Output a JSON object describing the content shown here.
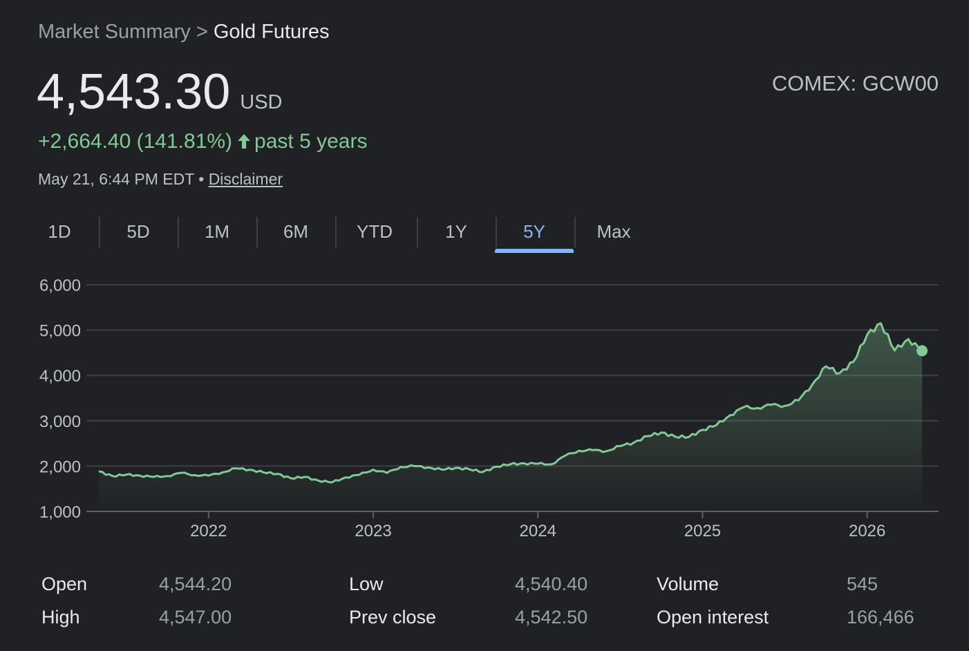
{
  "breadcrumb": {
    "parent": "Market Summary",
    "separator": ">",
    "current": "Gold Futures"
  },
  "price": {
    "value": "4,543.30",
    "currency": "USD"
  },
  "exchange": "COMEX: GCW00",
  "change": {
    "amount": "+2,664.40 (141.81%)",
    "period": "past 5 years",
    "color": "#81c995"
  },
  "timestamp": {
    "text": "May 21, 6:44 PM EDT",
    "separator": "•",
    "disclaimer": "Disclaimer"
  },
  "tabs": [
    {
      "label": "1D"
    },
    {
      "label": "5D"
    },
    {
      "label": "1M"
    },
    {
      "label": "6M"
    },
    {
      "label": "YTD"
    },
    {
      "label": "1Y"
    },
    {
      "label": "5Y",
      "active": true
    },
    {
      "label": "Max"
    }
  ],
  "chart_data": {
    "type": "area",
    "y_ticks": [
      "6,000",
      "5,000",
      "4,000",
      "3,000",
      "2,000",
      "1,000"
    ],
    "x_ticks": [
      "2022",
      "2023",
      "2024",
      "2025",
      "2026"
    ],
    "ylim": [
      1000,
      6000
    ],
    "xlim": [
      "2021-05",
      "2026-05"
    ],
    "grid": true,
    "line_color": "#81c995",
    "series": [
      {
        "x": [
          "2021-05",
          "2021-06",
          "2021-07",
          "2021-08",
          "2021-09",
          "2021-10",
          "2021-11",
          "2021-12",
          "2022-01",
          "2022-02",
          "2022-03",
          "2022-04",
          "2022-05",
          "2022-06",
          "2022-07",
          "2022-08",
          "2022-09",
          "2022-10",
          "2022-11",
          "2022-12",
          "2023-01",
          "2023-02",
          "2023-03",
          "2023-04",
          "2023-05",
          "2023-06",
          "2023-07",
          "2023-08",
          "2023-09",
          "2023-10",
          "2023-11",
          "2023-12",
          "2024-01",
          "2024-02",
          "2024-03",
          "2024-04",
          "2024-05",
          "2024-06",
          "2024-07",
          "2024-08",
          "2024-09",
          "2024-10",
          "2024-11",
          "2024-12",
          "2025-01",
          "2025-02",
          "2025-03",
          "2025-04",
          "2025-05",
          "2025-06",
          "2025-07",
          "2025-08",
          "2025-09",
          "2025-10",
          "2025-11",
          "2025-12",
          "2026-01",
          "2026-02",
          "2026-03",
          "2026-04",
          "2026-05"
        ],
        "values": [
          1880,
          1780,
          1810,
          1790,
          1760,
          1780,
          1850,
          1800,
          1790,
          1860,
          1950,
          1920,
          1860,
          1830,
          1730,
          1760,
          1680,
          1640,
          1750,
          1810,
          1920,
          1850,
          1980,
          2000,
          1970,
          1920,
          1960,
          1930,
          1870,
          1990,
          2040,
          2060,
          2050,
          2040,
          2230,
          2340,
          2350,
          2330,
          2440,
          2520,
          2660,
          2740,
          2650,
          2640,
          2800,
          2900,
          3120,
          3300,
          3280,
          3350,
          3330,
          3450,
          3800,
          4200,
          4050,
          4300,
          4900,
          5150,
          4550,
          4800,
          4543.3
        ]
      }
    ]
  },
  "stats": [
    {
      "label": "Open",
      "value": "4,544.20"
    },
    {
      "label": "High",
      "value": "4,547.00"
    },
    {
      "label": "Low",
      "value": "4,540.40"
    },
    {
      "label": "Prev close",
      "value": "4,542.50"
    },
    {
      "label": "Volume",
      "value": "545"
    },
    {
      "label": "Open interest",
      "value": "166,466"
    }
  ]
}
